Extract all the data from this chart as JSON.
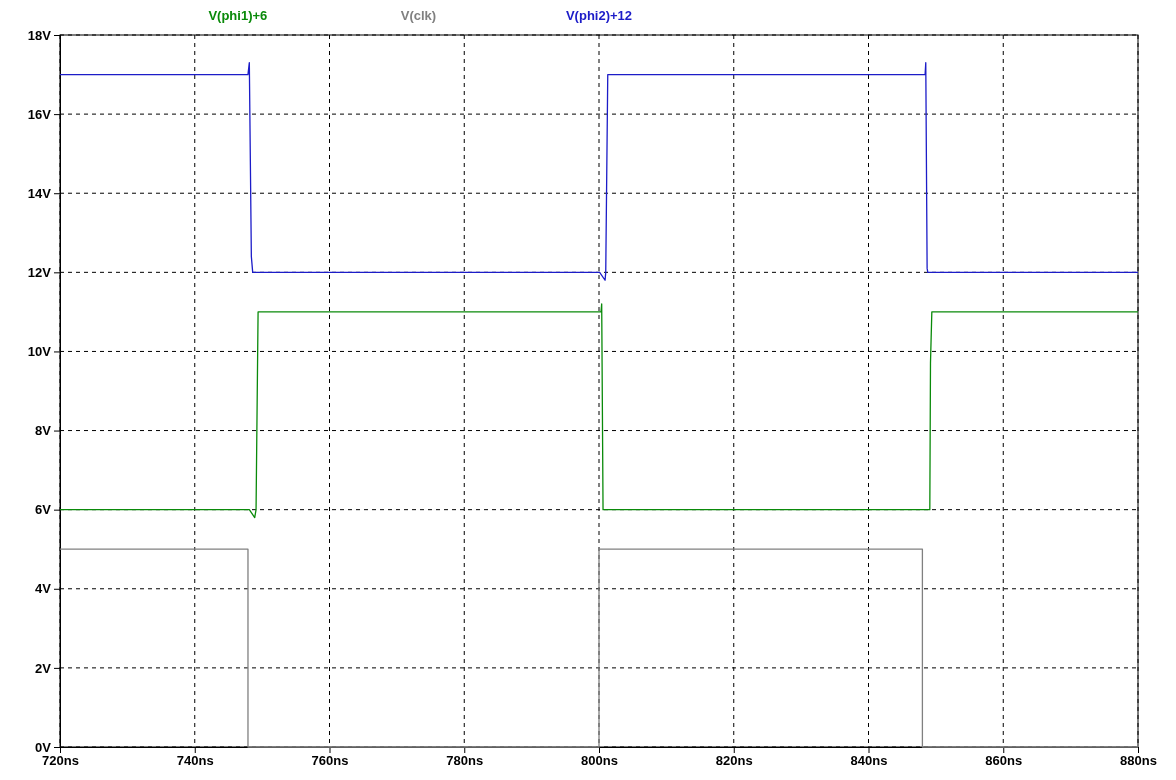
{
  "chart_data": {
    "type": "line",
    "xlim": [
      720,
      880
    ],
    "ylim": [
      0,
      18
    ],
    "xticks": [
      {
        "value": 720,
        "label": "720ns"
      },
      {
        "value": 740,
        "label": "740ns"
      },
      {
        "value": 760,
        "label": "760ns"
      },
      {
        "value": 780,
        "label": "780ns"
      },
      {
        "value": 800,
        "label": "800ns"
      },
      {
        "value": 820,
        "label": "820ns"
      },
      {
        "value": 840,
        "label": "840ns"
      },
      {
        "value": 860,
        "label": "860ns"
      },
      {
        "value": 880,
        "label": "880ns"
      }
    ],
    "yticks": [
      {
        "value": 0,
        "label": "0V"
      },
      {
        "value": 2,
        "label": "2V"
      },
      {
        "value": 4,
        "label": "4V"
      },
      {
        "value": 6,
        "label": "6V"
      },
      {
        "value": 8,
        "label": "8V"
      },
      {
        "value": 10,
        "label": "10V"
      },
      {
        "value": 12,
        "label": "12V"
      },
      {
        "value": 14,
        "label": "14V"
      },
      {
        "value": 16,
        "label": "16V"
      },
      {
        "value": 18,
        "label": "18V"
      }
    ],
    "grid": true,
    "legend": "top",
    "marker": "none",
    "line_style": "solid",
    "series": [
      {
        "name": "V(phi1)+6",
        "color": "#0a8a0a",
        "x": [
          720,
          748.1,
          748.9,
          749.1,
          749.4,
          800.3,
          800.4,
          800.6,
          848,
          849.1,
          849.2,
          849.4,
          880
        ],
        "values": [
          6,
          6,
          5.8,
          6,
          11,
          11,
          11.2,
          6,
          6,
          6,
          9.7,
          11,
          11
        ]
      },
      {
        "name": "V(clk)",
        "color": "#808080",
        "x": [
          720,
          747.9,
          747.9,
          800,
          800,
          848,
          848,
          880
        ],
        "values": [
          5,
          5,
          0,
          0,
          5,
          5,
          0,
          0
        ]
      },
      {
        "name": "V(phi2)+12",
        "color": "#1c1cc8",
        "x": [
          720,
          747.9,
          748.1,
          748.4,
          748.5,
          748.6,
          800.1,
          800.9,
          801,
          801.3,
          848.4,
          848.5,
          848.7,
          848.8,
          880
        ],
        "values": [
          17,
          17,
          17.3,
          12.4,
          12.2,
          12,
          12,
          11.8,
          12,
          17,
          17,
          17.3,
          12.1,
          12,
          12
        ]
      }
    ]
  }
}
